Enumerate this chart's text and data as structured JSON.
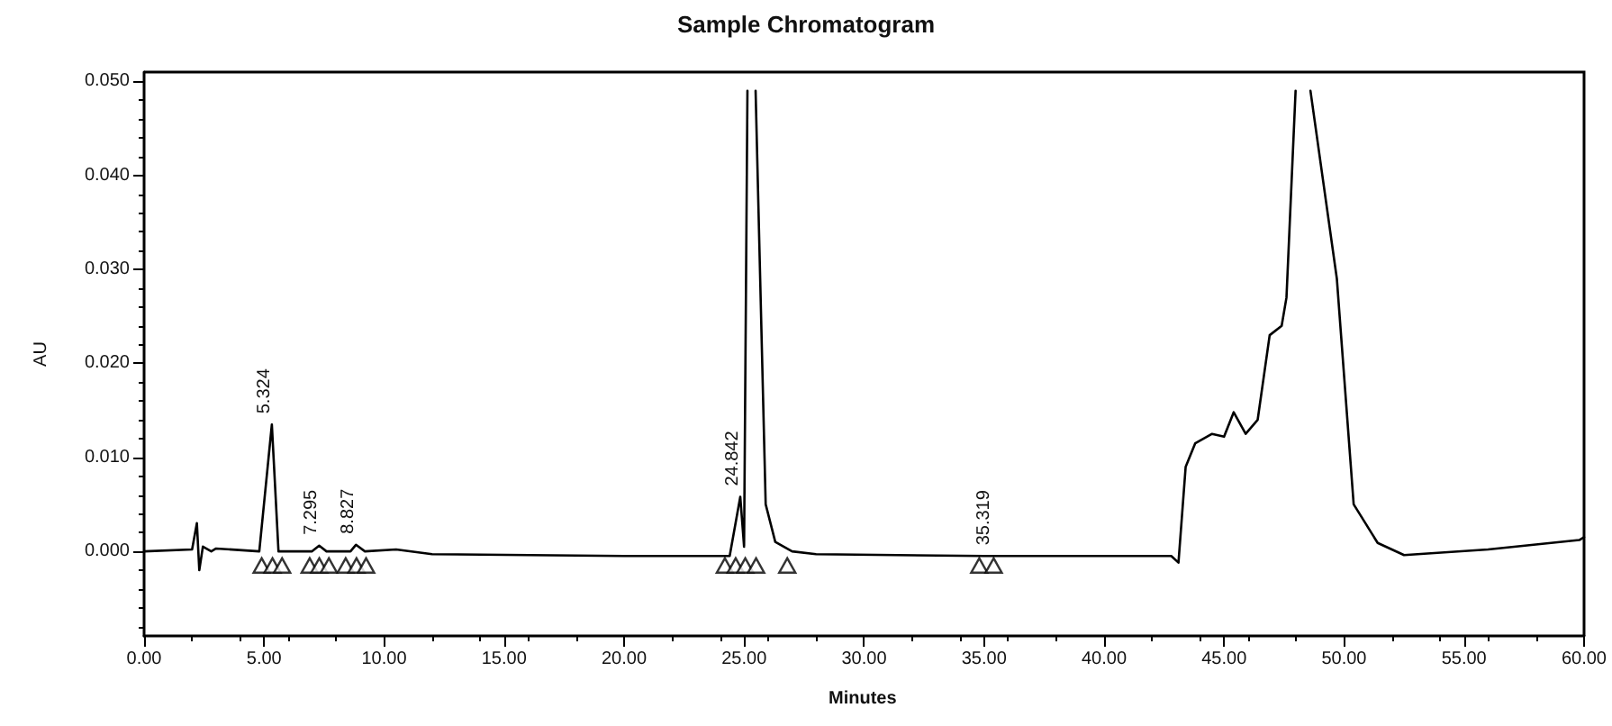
{
  "chart_data": {
    "type": "line",
    "title": "Sample Chromatogram",
    "xlabel": "Minutes",
    "ylabel": "AU",
    "xlim": [
      0,
      60
    ],
    "xticks": [
      {
        "value": 0,
        "label": "0.00"
      },
      {
        "value": 5,
        "label": "5.00"
      },
      {
        "value": 10,
        "label": "10.00"
      },
      {
        "value": 15,
        "label": "15.00"
      },
      {
        "value": 20,
        "label": "20.00"
      },
      {
        "value": 25,
        "label": "25.00"
      },
      {
        "value": 30,
        "label": "30.00"
      },
      {
        "value": 35,
        "label": "35.00"
      },
      {
        "value": 40,
        "label": "40.00"
      },
      {
        "value": 45,
        "label": "45.00"
      },
      {
        "value": 50,
        "label": "50.00"
      },
      {
        "value": 55,
        "label": "55.00"
      },
      {
        "value": 60,
        "label": "60.00"
      }
    ],
    "ylim": [
      -0.009,
      0.051
    ],
    "yticks": [
      {
        "value": 0,
        "label": "0.000"
      },
      {
        "value": 0.01,
        "label": "0.010"
      },
      {
        "value": 0.02,
        "label": "0.020"
      },
      {
        "value": 0.03,
        "label": "0.030"
      },
      {
        "value": 0.04,
        "label": "0.040"
      },
      {
        "value": 0.05,
        "label": "0.050"
      }
    ],
    "grid": false,
    "series": [
      {
        "color": "#000000",
        "marker": "none",
        "x": [
          0,
          2.0,
          2.2,
          2.3,
          2.45,
          2.8,
          3.0,
          4.8,
          5.324,
          5.6,
          7.0,
          7.295,
          7.6,
          8.6,
          8.827,
          9.2,
          10.5,
          12,
          20,
          24.4,
          24.842,
          25.0,
          25.14,
          25.15,
          25.45,
          25.48,
          25.9,
          26.3,
          27,
          28,
          35,
          40,
          42.8,
          43.1,
          43.4,
          43.8,
          44.5,
          45.0,
          45.4,
          45.9,
          46.4,
          46.9,
          47.4,
          47.6,
          47.98,
          48.0,
          48.5,
          48.6,
          49.7,
          50.4,
          51.4,
          52.5,
          56,
          59.8,
          60
        ],
        "values": [
          0,
          0.0002,
          0.003,
          -0.002,
          0.0005,
          0,
          0.0003,
          0,
          0.0135,
          0,
          0,
          0.0006,
          0,
          0,
          0.0007,
          0,
          0.0002,
          -0.0003,
          -0.0005,
          -0.0005,
          0.0058,
          0.0005,
          0.049,
          null,
          null,
          0.049,
          0.005,
          0.001,
          0,
          -0.0003,
          -0.0005,
          -0.0005,
          -0.0005,
          -0.0012,
          0.009,
          0.0115,
          0.0125,
          0.0122,
          0.0148,
          0.0125,
          0.014,
          0.023,
          0.024,
          0.027,
          0.049,
          null,
          null,
          0.049,
          0.029,
          0.005,
          0.0009,
          -0.0004,
          0.0002,
          0.0012,
          0.0015
        ]
      },
      {
        "type": "scatter",
        "color": "#000000",
        "marker": "triangle",
        "x": [
          4.9,
          5.35,
          5.75,
          6.9,
          7.3,
          7.7,
          8.4,
          8.85,
          9.25,
          24.2,
          24.65,
          25.05,
          25.5,
          26.8,
          34.8,
          35.4
        ],
        "values": [
          -0.0015,
          -0.0015,
          -0.0015,
          -0.0015,
          -0.0015,
          -0.0015,
          -0.0015,
          -0.0015,
          -0.0015,
          -0.0015,
          -0.0015,
          -0.0015,
          -0.0015,
          -0.0015,
          -0.0015,
          -0.0015
        ]
      }
    ],
    "annotations": [
      {
        "text": "5.324",
        "x": 5.324,
        "y": 0.0135
      },
      {
        "text": "7.295",
        "x": 7.295,
        "y": 0.0006
      },
      {
        "text": "8.827",
        "x": 8.827,
        "y": 0.0007
      },
      {
        "text": "24.842",
        "x": 24.842,
        "y": 0.0058
      },
      {
        "text": "35.319",
        "x": 35.319,
        "y": -0.0005
      }
    ]
  }
}
